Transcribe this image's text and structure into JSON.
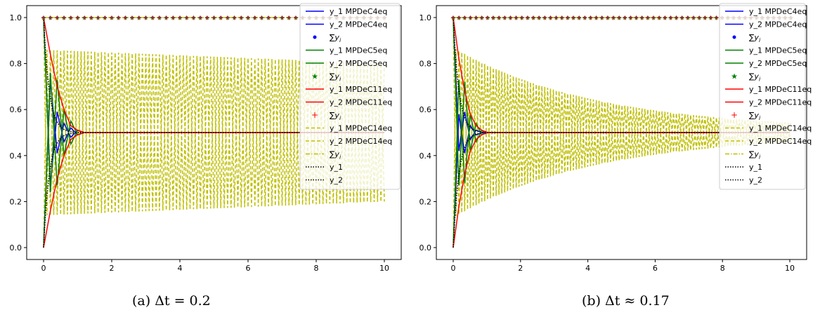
{
  "chart_data": [
    {
      "type": "line",
      "caption": "(a) Δt = 0.2",
      "dt": 0.2,
      "xlim": [
        0,
        10
      ],
      "ylim": [
        0,
        1
      ],
      "xticks": [
        "0",
        "2",
        "4",
        "6",
        "8",
        "10"
      ],
      "yticks": [
        "0.0",
        "0.2",
        "0.4",
        "0.6",
        "0.8",
        "1.0"
      ],
      "grid": false,
      "legend_position": "top-right",
      "series": [
        {
          "name": "y_1 MPDeC4eq",
          "color": "#0000ff",
          "style": "solid",
          "values_y1": [
            1.0,
            0.27,
            0.59,
            0.46,
            0.52,
            0.49,
            0.5
          ]
        },
        {
          "name": "y_2 MPDeC4eq",
          "color": "#0000ff",
          "style": "solid"
        },
        {
          "name": "∑y_i",
          "color": "#0000ff",
          "style": "dots",
          "value": 1.0
        },
        {
          "name": "y_1 MPDeC5eq",
          "color": "#008000",
          "style": "solid",
          "values_y1": [
            1.0,
            0.24,
            0.73,
            0.4,
            0.55,
            0.49,
            0.5
          ]
        },
        {
          "name": "y_2 MPDeC5eq",
          "color": "#008000",
          "style": "solid"
        },
        {
          "name": "∑y_i",
          "color": "#008000",
          "style": "stars",
          "value": 1.0
        },
        {
          "name": "y_1 MPDeC11eq",
          "color": "#ff0000",
          "style": "solid",
          "values_y1": [
            1.0,
            0.84,
            0.7,
            0.6,
            0.53,
            0.51,
            0.5
          ]
        },
        {
          "name": "y_2 MPDeC11eq",
          "color": "#ff0000",
          "style": "solid"
        },
        {
          "name": "∑y_i",
          "color": "#ff0000",
          "style": "plus",
          "value": 1.0
        },
        {
          "name": "y_1 MPDeC14eq",
          "color": "#bfbf00",
          "style": "dashed",
          "amplitude_start": 0.36,
          "amplitude_end": 0.3
        },
        {
          "name": "y_2 MPDeC14eq",
          "color": "#bfbf00",
          "style": "dashed"
        },
        {
          "name": "∑y_i",
          "color": "#bfbf00",
          "style": "dashdot",
          "value": 1.0
        },
        {
          "name": "y_1",
          "color": "#000000",
          "style": "dotted"
        },
        {
          "name": "y_2",
          "color": "#000000",
          "style": "dotted"
        }
      ],
      "equilibrium": 0.5
    },
    {
      "type": "line",
      "caption": "(b) Δt ≈ 0.17",
      "dt": 0.17,
      "xlim": [
        0,
        10
      ],
      "ylim": [
        0,
        1
      ],
      "xticks": [
        "0",
        "2",
        "4",
        "6",
        "8",
        "10"
      ],
      "yticks": [
        "0.0",
        "0.2",
        "0.4",
        "0.6",
        "0.8",
        "1.0"
      ],
      "grid": false,
      "legend_position": "top-right",
      "series": [
        {
          "name": "y_1 MPDeC4eq",
          "color": "#0000ff",
          "style": "solid",
          "values_y1": [
            1.0,
            0.42,
            0.59,
            0.47,
            0.51,
            0.5,
            0.5
          ]
        },
        {
          "name": "y_2 MPDeC4eq",
          "color": "#0000ff",
          "style": "solid"
        },
        {
          "name": "∑y_i",
          "color": "#0000ff",
          "style": "dots",
          "value": 1.0
        },
        {
          "name": "y_1 MPDeC5eq",
          "color": "#008000",
          "style": "solid",
          "values_y1": [
            1.0,
            0.27,
            0.72,
            0.42,
            0.54,
            0.49,
            0.5
          ]
        },
        {
          "name": "y_2 MPDeC5eq",
          "color": "#008000",
          "style": "solid"
        },
        {
          "name": "∑y_i",
          "color": "#008000",
          "style": "stars",
          "value": 1.0
        },
        {
          "name": "y_1 MPDeC11eq",
          "color": "#ff0000",
          "style": "solid",
          "values_y1": [
            1.0,
            0.82,
            0.68,
            0.58,
            0.53,
            0.51,
            0.5
          ]
        },
        {
          "name": "y_2 MPDeC11eq",
          "color": "#ff0000",
          "style": "solid"
        },
        {
          "name": "∑y_i",
          "color": "#ff0000",
          "style": "plus",
          "value": 1.0
        },
        {
          "name": "y_1 MPDeC14eq",
          "color": "#bfbf00",
          "style": "dashed",
          "amplitude_start": 0.37,
          "amplitude_end": 0.01
        },
        {
          "name": "y_2 MPDeC14eq",
          "color": "#bfbf00",
          "style": "dashed"
        },
        {
          "name": "∑y_i",
          "color": "#bfbf00",
          "style": "dashdot",
          "value": 1.0
        },
        {
          "name": "y_1",
          "color": "#000000",
          "style": "dotted"
        },
        {
          "name": "y_2",
          "color": "#000000",
          "style": "dotted"
        }
      ],
      "equilibrium": 0.5
    }
  ]
}
